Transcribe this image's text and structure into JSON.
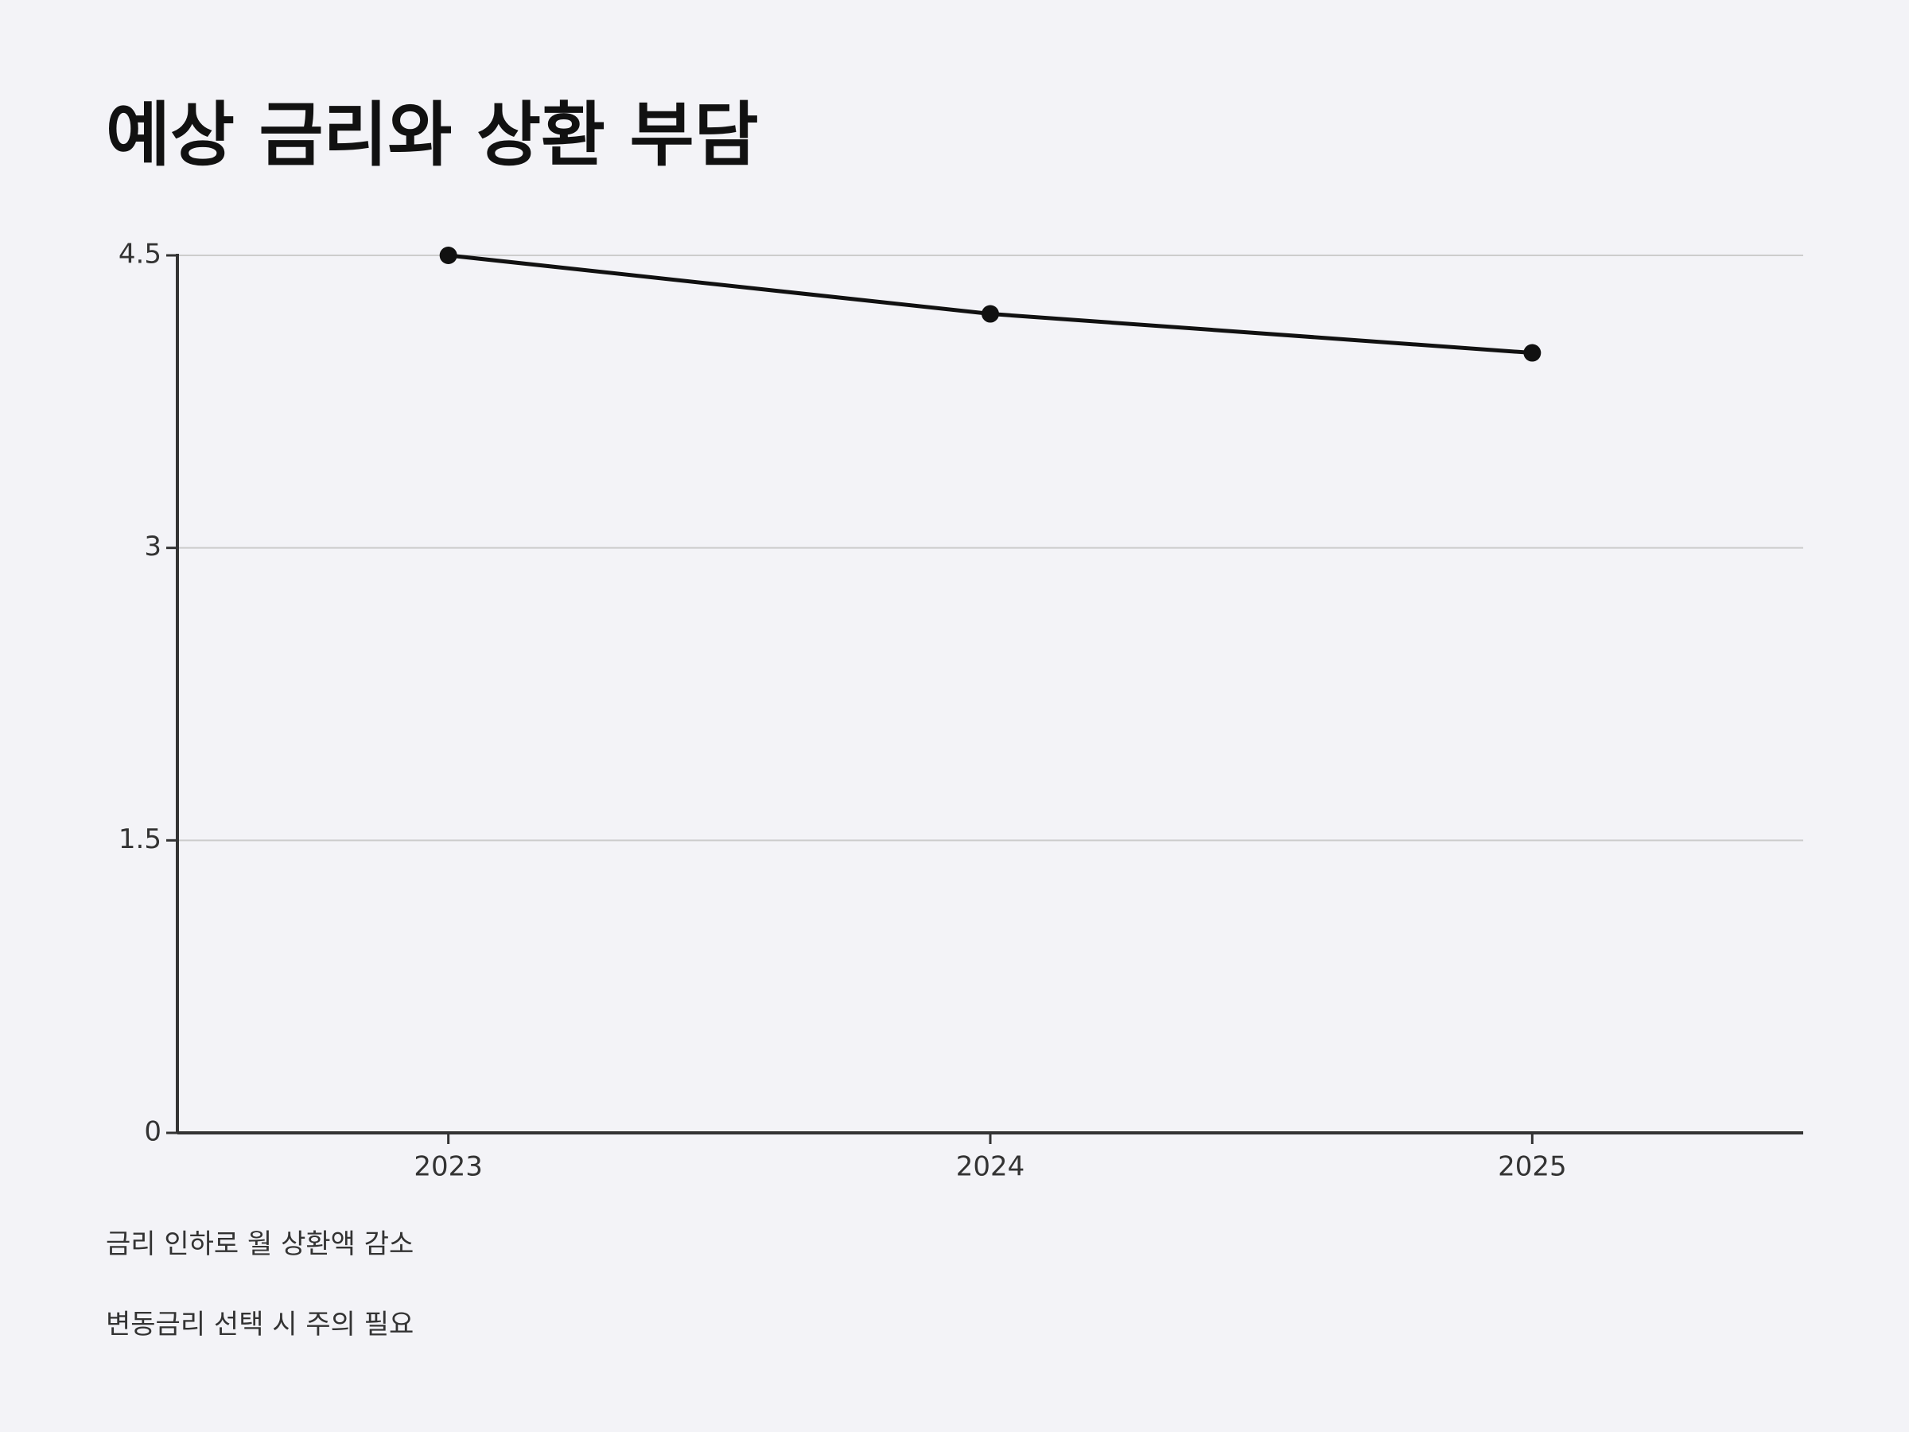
{
  "chart_data": {
    "type": "line",
    "title": "예상 금리와 상환 부담",
    "categories": [
      "2023",
      "2024",
      "2025"
    ],
    "values": [
      4.5,
      4.2,
      4.0
    ],
    "color": "#111111",
    "ylim": [
      0,
      4.5
    ],
    "yticks": [
      0,
      1.5,
      3,
      4.5
    ],
    "grid": true,
    "notes": [
      "금리 인하로 월 상환액 감소",
      "변동금리 선택 시 주의 필요"
    ]
  }
}
